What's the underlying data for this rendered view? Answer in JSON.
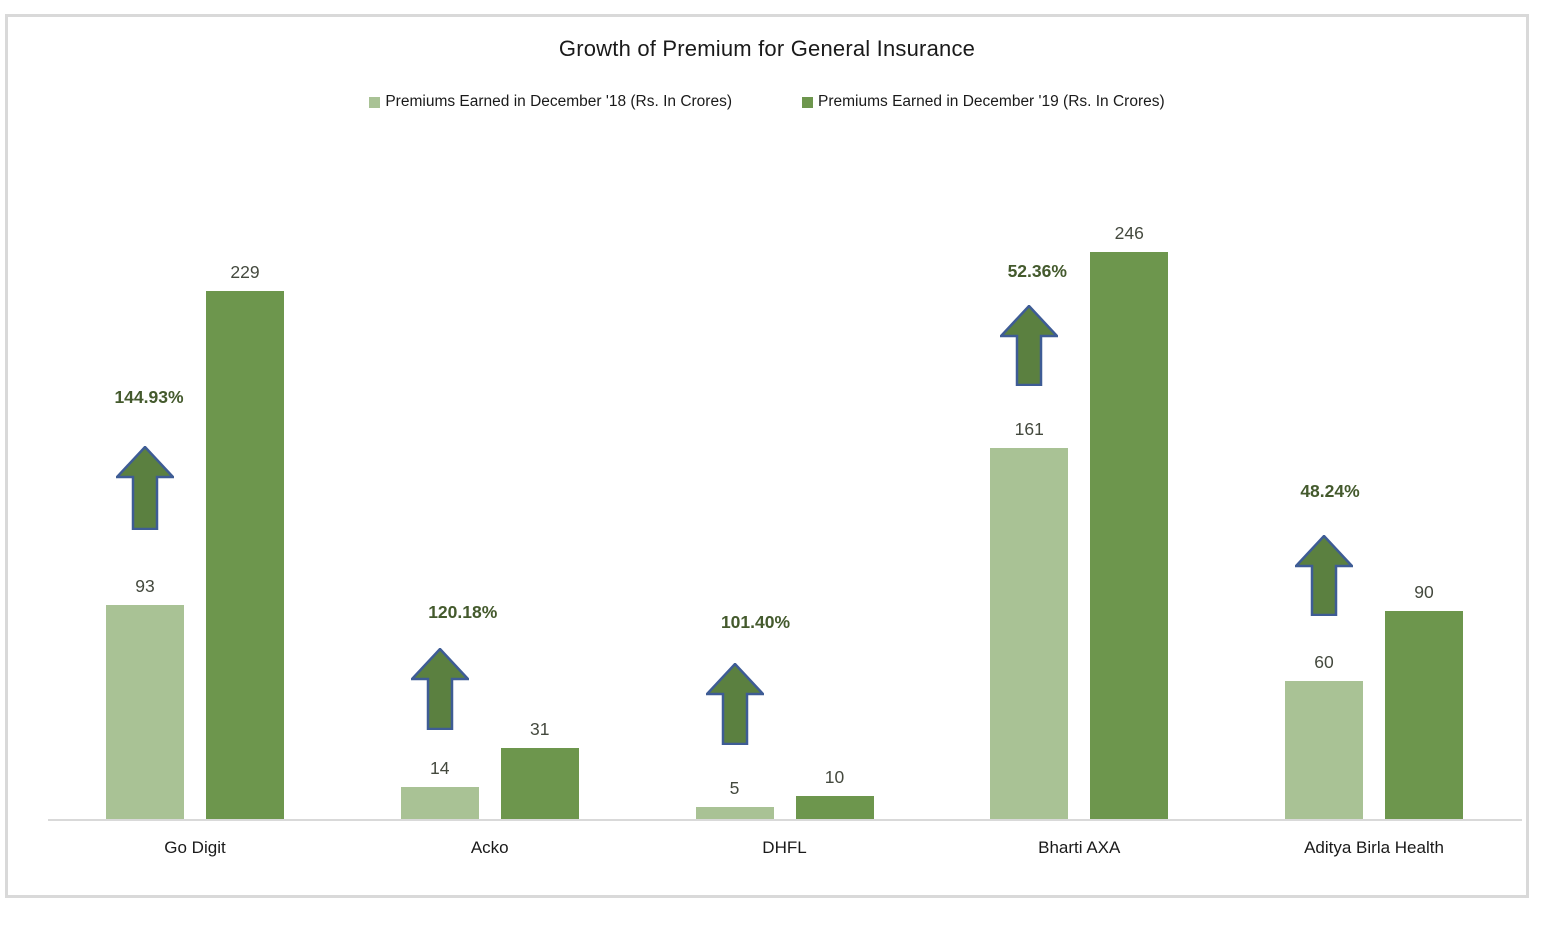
{
  "chart_data": {
    "type": "bar",
    "title": "Growth of Premium for General Insurance",
    "categories": [
      "Go Digit",
      "Acko",
      "DHFL",
      "Bharti AXA",
      "Aditya Birla Health"
    ],
    "series": [
      {
        "name": "Premiums Earned in December '18 (Rs. In Crores)",
        "color": "#a9c295",
        "values": [
          93,
          14,
          5,
          161,
          60
        ]
      },
      {
        "name": "Premiums Earned in December '19 (Rs. In Crores)",
        "color": "#6d964d",
        "values": [
          229,
          31,
          10,
          246,
          90
        ]
      }
    ],
    "growth_labels": [
      "144.93%",
      "120.18%",
      "101.40%",
      "52.36%",
      "48.24%"
    ],
    "ylim": [
      0,
      250
    ],
    "xlabel": "",
    "ylabel": "",
    "grid": false,
    "legend_position": "top"
  },
  "colors": {
    "bar_dec18": "#a9c295",
    "bar_dec19": "#6d964d",
    "arrow_fill": "#5b8040",
    "arrow_stroke": "#3e5c95",
    "axis_line": "#d9d9d9",
    "frame_border": "#d9d9d9",
    "value_label": "#44493e",
    "growth_label": "#445a2d",
    "title_text": "#1a1a1a"
  }
}
